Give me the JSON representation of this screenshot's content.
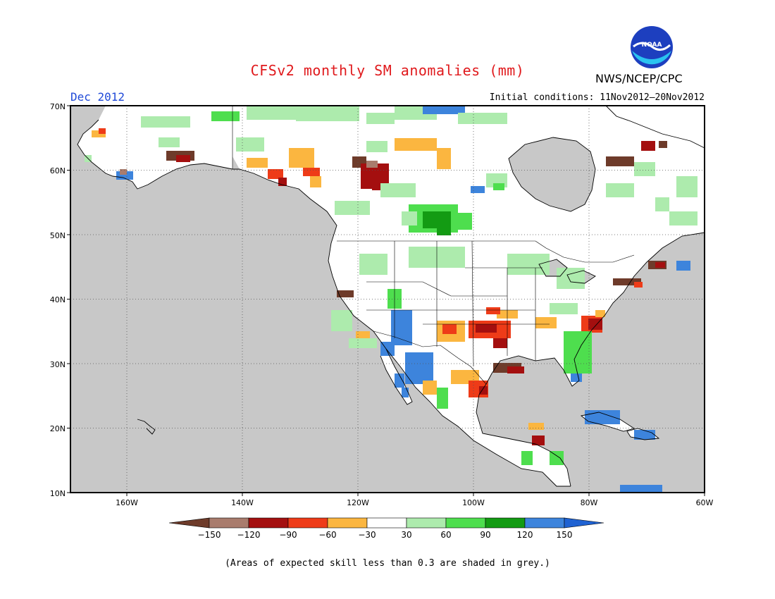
{
  "title": "CFSv2 monthly SM anomalies (mm)",
  "month_label": "Dec 2012",
  "agency_label": "NWS/NCEP/CPC",
  "logo_text": "NOAA",
  "initial_conditions": "Initial conditions: 11Nov2012–20Nov2012",
  "footnote": "(Areas of expected skill less than 0.3 are shaded in grey.)",
  "map": {
    "lon_range": [
      -172,
      -60
    ],
    "lat_range": [
      10,
      70
    ],
    "lat_ticks": [
      "10N",
      "20N",
      "30N",
      "40N",
      "50N",
      "60N",
      "70N"
    ],
    "lon_ticks": [
      "160W",
      "140W",
      "120W",
      "100W",
      "80W",
      "60W"
    ],
    "grid": true,
    "background_color": "#c8c8c8"
  },
  "legend": {
    "tick_labels": [
      "−150",
      "−120",
      "−90",
      "−60",
      "−30",
      "30",
      "60",
      "90",
      "120",
      "150"
    ],
    "colors": [
      "#6e3b2a",
      "#a97c6d",
      "#a40f0f",
      "#ee3b18",
      "#fbb640",
      "#ffffff",
      "#adebad",
      "#4ede4e",
      "#139b13",
      "#3d84dc",
      "#1f62d2"
    ]
  },
  "colors": {
    "title": "#e0191c",
    "month": "#1f49d8",
    "unskilled_grey": "#c8c8c8"
  }
}
